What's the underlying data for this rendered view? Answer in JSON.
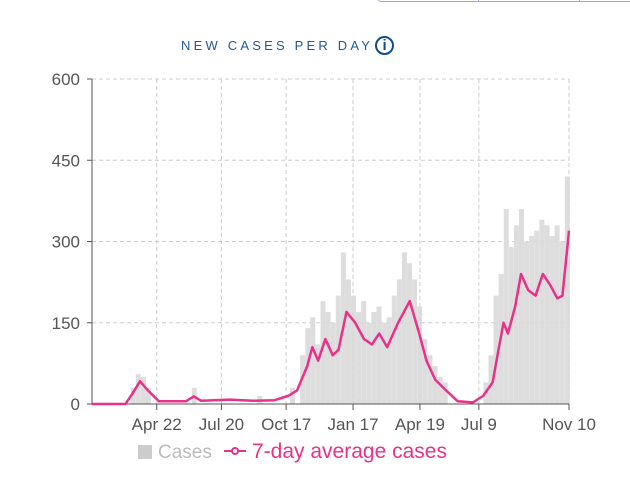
{
  "header": {
    "title": "NEW CASES PER DAY",
    "info_icon": "info-circle-icon"
  },
  "colors": {
    "bars": "#d9d9d9",
    "average_line": "#e8318a",
    "title": "#1f5a96",
    "axis": "#555555",
    "grid": "#cccccc"
  },
  "chart_data": {
    "type": "bar+line",
    "title": "NEW CASES PER DAY",
    "ylim": [
      0,
      600
    ],
    "yticks": [
      0,
      150,
      300,
      450,
      600
    ],
    "xlim": [
      "2020-01-24",
      "2021-11-10"
    ],
    "xticks": [
      {
        "date": "2020-04-22",
        "label": "Apr 22"
      },
      {
        "date": "2020-07-20",
        "label": "Jul 20"
      },
      {
        "date": "2020-10-17",
        "label": "Oct 17"
      },
      {
        "date": "2021-01-17",
        "label": "Jan 17"
      },
      {
        "date": "2021-04-19",
        "label": "Apr 19"
      },
      {
        "date": "2021-07-09",
        "label": "Jul 9"
      },
      {
        "date": "2021-11-10",
        "label": "Nov 10"
      }
    ],
    "grid": true,
    "legend": {
      "position": "bottom",
      "entries": [
        "Cases",
        "7-day average cases"
      ]
    },
    "series": [
      {
        "name": "Cases",
        "type": "bar",
        "points": [
          [
            "2020-03-20",
            30
          ],
          [
            "2020-03-27",
            55
          ],
          [
            "2020-04-03",
            50
          ],
          [
            "2020-04-10",
            30
          ],
          [
            "2020-06-12",
            30
          ],
          [
            "2020-09-10",
            15
          ],
          [
            "2020-10-25",
            30
          ],
          [
            "2020-11-08",
            90
          ],
          [
            "2020-11-15",
            140
          ],
          [
            "2020-11-22",
            160
          ],
          [
            "2020-11-29",
            110
          ],
          [
            "2020-12-06",
            190
          ],
          [
            "2020-12-13",
            170
          ],
          [
            "2020-12-20",
            150
          ],
          [
            "2020-12-27",
            200
          ],
          [
            "2021-01-03",
            280
          ],
          [
            "2021-01-10",
            230
          ],
          [
            "2021-01-17",
            200
          ],
          [
            "2021-01-24",
            170
          ],
          [
            "2021-01-31",
            190
          ],
          [
            "2021-02-07",
            150
          ],
          [
            "2021-02-14",
            170
          ],
          [
            "2021-02-21",
            180
          ],
          [
            "2021-02-28",
            150
          ],
          [
            "2021-03-07",
            160
          ],
          [
            "2021-03-14",
            200
          ],
          [
            "2021-03-21",
            230
          ],
          [
            "2021-03-28",
            280
          ],
          [
            "2021-04-04",
            260
          ],
          [
            "2021-04-11",
            230
          ],
          [
            "2021-04-18",
            180
          ],
          [
            "2021-04-25",
            120
          ],
          [
            "2021-05-02",
            90
          ],
          [
            "2021-05-09",
            70
          ],
          [
            "2021-05-16",
            50
          ],
          [
            "2021-05-23",
            40
          ],
          [
            "2021-07-18",
            40
          ],
          [
            "2021-07-25",
            90
          ],
          [
            "2021-08-01",
            200
          ],
          [
            "2021-08-08",
            240
          ],
          [
            "2021-08-15",
            360
          ],
          [
            "2021-08-22",
            290
          ],
          [
            "2021-08-29",
            330
          ],
          [
            "2021-09-05",
            360
          ],
          [
            "2021-09-12",
            300
          ],
          [
            "2021-09-19",
            310
          ],
          [
            "2021-09-26",
            320
          ],
          [
            "2021-10-03",
            340
          ],
          [
            "2021-10-10",
            330
          ],
          [
            "2021-10-17",
            310
          ],
          [
            "2021-10-24",
            330
          ],
          [
            "2021-10-31",
            300
          ],
          [
            "2021-11-07",
            420
          ]
        ]
      },
      {
        "name": "7-day average cases",
        "type": "line",
        "points": [
          [
            "2020-01-24",
            0
          ],
          [
            "2020-03-10",
            0
          ],
          [
            "2020-03-20",
            20
          ],
          [
            "2020-03-30",
            42
          ],
          [
            "2020-04-10",
            25
          ],
          [
            "2020-04-25",
            5
          ],
          [
            "2020-06-01",
            5
          ],
          [
            "2020-06-12",
            14
          ],
          [
            "2020-06-22",
            6
          ],
          [
            "2020-08-01",
            8
          ],
          [
            "2020-09-01",
            6
          ],
          [
            "2020-10-01",
            7
          ],
          [
            "2020-10-20",
            15
          ],
          [
            "2020-11-01",
            25
          ],
          [
            "2020-11-15",
            70
          ],
          [
            "2020-11-22",
            105
          ],
          [
            "2020-11-30",
            80
          ],
          [
            "2020-12-10",
            120
          ],
          [
            "2020-12-20",
            90
          ],
          [
            "2020-12-28",
            100
          ],
          [
            "2021-01-08",
            170
          ],
          [
            "2021-01-20",
            150
          ],
          [
            "2021-02-01",
            120
          ],
          [
            "2021-02-12",
            110
          ],
          [
            "2021-02-22",
            130
          ],
          [
            "2021-03-05",
            105
          ],
          [
            "2021-03-20",
            150
          ],
          [
            "2021-04-05",
            190
          ],
          [
            "2021-04-18",
            130
          ],
          [
            "2021-04-28",
            80
          ],
          [
            "2021-05-10",
            45
          ],
          [
            "2021-05-25",
            25
          ],
          [
            "2021-06-10",
            5
          ],
          [
            "2021-07-01",
            3
          ],
          [
            "2021-07-15",
            15
          ],
          [
            "2021-07-28",
            40
          ],
          [
            "2021-08-05",
            100
          ],
          [
            "2021-08-12",
            150
          ],
          [
            "2021-08-18",
            130
          ],
          [
            "2021-08-28",
            180
          ],
          [
            "2021-09-05",
            240
          ],
          [
            "2021-09-15",
            210
          ],
          [
            "2021-09-25",
            200
          ],
          [
            "2021-10-05",
            240
          ],
          [
            "2021-10-15",
            220
          ],
          [
            "2021-10-25",
            195
          ],
          [
            "2021-11-01",
            200
          ],
          [
            "2021-11-10",
            320
          ]
        ]
      }
    ]
  }
}
